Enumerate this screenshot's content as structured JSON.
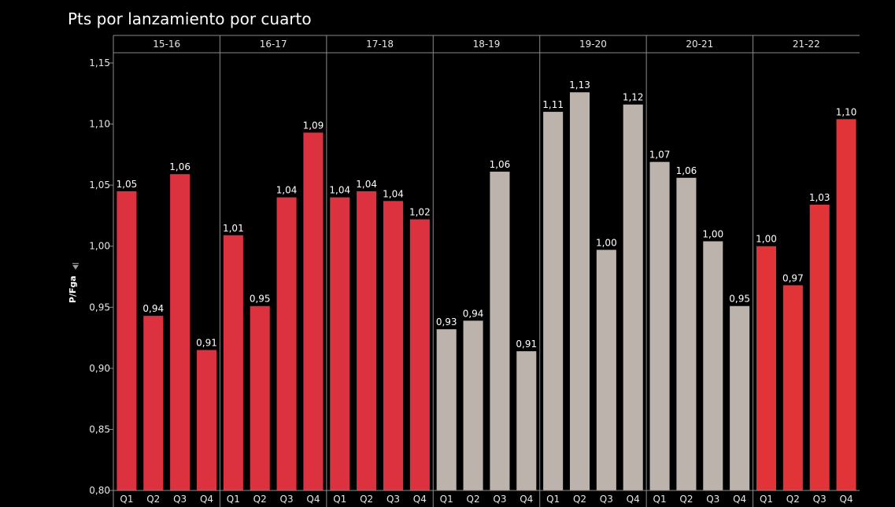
{
  "chart_data": {
    "type": "bar",
    "title": "Pts por lanzamiento por cuarto",
    "ylabel": "P/Fga",
    "ylabel_sort_icon": "sort-descending-icon",
    "ylim": [
      0.8,
      1.15
    ],
    "yticks": [
      0.8,
      0.85,
      0.9,
      0.95,
      1.0,
      1.05,
      1.1,
      1.15
    ],
    "ytick_labels": [
      "0,80",
      "0,85",
      "0,90",
      "0,95",
      "1,00",
      "1,05",
      "1,10",
      "1,15"
    ],
    "grid": false,
    "quarters": [
      "Q1",
      "Q2",
      "Q3",
      "Q4"
    ],
    "colors": {
      "highlight": "#dc3240",
      "highlight_alt": "#e03438",
      "muted": "#bdb3ad",
      "background": "#000000",
      "text": "#e6e6e6"
    },
    "series": [
      {
        "season": "15-16",
        "color": "#dc3240",
        "values": [
          1.045,
          0.943,
          1.059,
          0.915
        ],
        "labels": [
          "1,05",
          "0,94",
          "1,06",
          "0,91"
        ]
      },
      {
        "season": "16-17",
        "color": "#dc3240",
        "values": [
          1.009,
          0.951,
          1.04,
          1.093
        ],
        "labels": [
          "1,01",
          "0,95",
          "1,04",
          "1,09"
        ]
      },
      {
        "season": "17-18",
        "color": "#dc3240",
        "values": [
          1.04,
          1.045,
          1.037,
          1.022
        ],
        "labels": [
          "1,04",
          "1,04",
          "1,04",
          "1,02"
        ]
      },
      {
        "season": "18-19",
        "color": "#bdb3ad",
        "values": [
          0.932,
          0.939,
          1.061,
          0.914
        ],
        "labels": [
          "0,93",
          "0,94",
          "1,06",
          "0,91"
        ]
      },
      {
        "season": "19-20",
        "color": "#bdb3ad",
        "values": [
          1.11,
          1.126,
          0.997,
          1.116
        ],
        "labels": [
          "1,11",
          "1,13",
          "1,00",
          "1,12"
        ]
      },
      {
        "season": "20-21",
        "color": "#bdb3ad",
        "values": [
          1.069,
          1.056,
          1.004,
          0.951
        ],
        "labels": [
          "1,07",
          "1,06",
          "1,00",
          "0,95"
        ]
      },
      {
        "season": "21-22",
        "color": "#e03438",
        "values": [
          1.0,
          0.968,
          1.034,
          1.104
        ],
        "labels": [
          "1,00",
          "0,97",
          "1,03",
          "1,10"
        ]
      }
    ]
  }
}
